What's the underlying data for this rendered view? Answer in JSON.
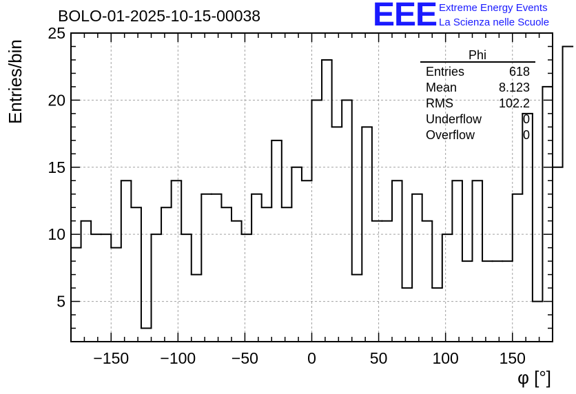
{
  "header": {
    "run_title": "BOLO-01-2025-10-15-00038",
    "logo_text": "EEE",
    "logo_line1": "Extreme Energy Events",
    "logo_line2": "La Scienza nelle Scuole",
    "logo_color": "#1a1aff"
  },
  "stats": {
    "name": "Phi",
    "rows": [
      {
        "label": "Entries",
        "value": "618"
      },
      {
        "label": "Mean",
        "value": "8.123"
      },
      {
        "label": "RMS",
        "value": "102.2"
      },
      {
        "label": "Underflow",
        "value": "0"
      },
      {
        "label": "Overflow",
        "value": "0"
      }
    ]
  },
  "chart_data": {
    "type": "histogram",
    "title": "BOLO-01-2025-10-15-00038",
    "xlabel": "φ [°]",
    "ylabel": "Entries/bin",
    "xlim": [
      -180,
      180
    ],
    "ylim": [
      2,
      25
    ],
    "bin_width": 7.5,
    "xticks": [
      -150,
      -100,
      -50,
      0,
      50,
      100,
      150
    ],
    "yticks": [
      5,
      10,
      15,
      20,
      25
    ],
    "grid": true,
    "values": [
      9,
      11,
      10,
      10,
      9,
      14,
      12,
      3,
      10,
      12,
      14,
      10,
      7,
      13,
      13,
      12,
      11,
      10,
      13,
      12,
      17,
      12,
      15,
      14,
      20,
      23,
      18,
      20,
      7,
      18,
      11,
      11,
      14,
      6,
      13,
      11,
      6,
      10,
      14,
      8,
      14,
      8,
      8,
      8,
      13,
      19,
      5,
      21,
      15,
      24
    ]
  }
}
